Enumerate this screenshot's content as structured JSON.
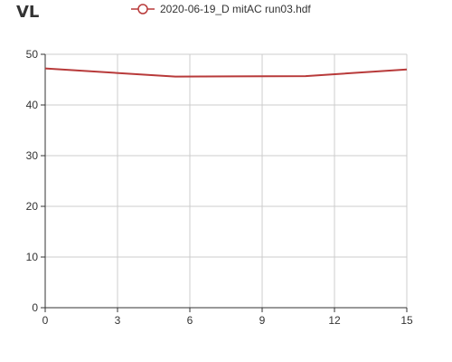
{
  "chart_data": {
    "type": "line",
    "title": "VL",
    "x_ticks": [
      0,
      3,
      6,
      9,
      12,
      15
    ],
    "y_ticks": [
      0,
      10,
      20,
      30,
      40,
      50
    ],
    "xlim": [
      0,
      15
    ],
    "ylim": [
      0,
      50
    ],
    "grid": true,
    "legend_position": "top-center",
    "series": [
      {
        "name": "2020-06-19_D mitAC run03.hdf",
        "color": "#b83a3a",
        "x": [
          0,
          5.4,
          10.8,
          15
        ],
        "y": [
          47.2,
          45.6,
          45.7,
          47.0
        ]
      }
    ]
  }
}
